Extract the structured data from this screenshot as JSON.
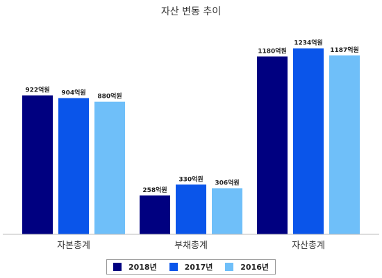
{
  "chart_data": {
    "type": "bar",
    "title": "자산 변동 추이",
    "categories": [
      "자본총계",
      "부채총계",
      "자산총계"
    ],
    "series": [
      {
        "name": "2018년",
        "color": "#000080",
        "values": [
          922,
          258,
          1180
        ],
        "labels": [
          "922억원",
          "258억원",
          "1180억원"
        ]
      },
      {
        "name": "2017년",
        "color": "#0a55ea",
        "values": [
          904,
          330,
          1234
        ],
        "labels": [
          "904억원",
          "330억원",
          "1234억원"
        ]
      },
      {
        "name": "2016년",
        "color": "#6fbff9",
        "values": [
          880,
          306,
          1187
        ],
        "labels": [
          "880억원",
          "306억원",
          "1187억원"
        ]
      }
    ],
    "ylim": [
      0,
      1380
    ],
    "grid": false,
    "legend_position": "bottom"
  }
}
